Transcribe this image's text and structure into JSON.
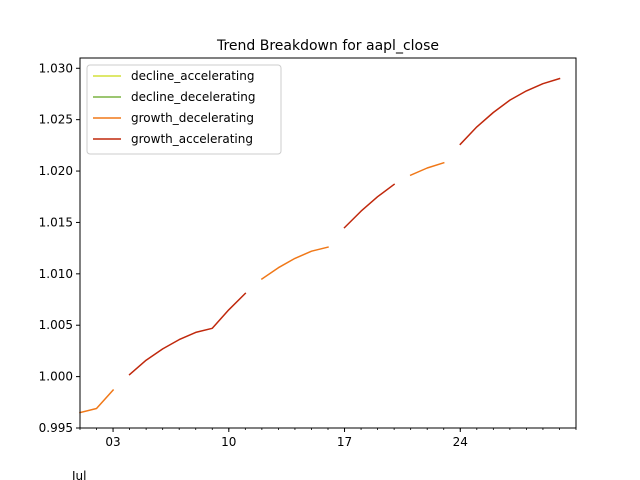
{
  "chart_data": {
    "type": "line",
    "title": "Trend Breakdown for aapl_close",
    "xlabel": "",
    "ylabel": "",
    "x_start": "2023-07-01",
    "x_end": "2023-07-31",
    "xlim": [
      "2023-07-01",
      "2023-07-31"
    ],
    "ylim": [
      0.995,
      1.031
    ],
    "x_ticks": [
      {
        "date": "2023-07-03",
        "label": "03"
      },
      {
        "date": "2023-07-10",
        "label": "10"
      },
      {
        "date": "2023-07-17",
        "label": "17"
      },
      {
        "date": "2023-07-24",
        "label": "24"
      }
    ],
    "x_month_label": "Jul",
    "y_ticks": [
      {
        "value": 0.995,
        "label": "0.995"
      },
      {
        "value": 1.0,
        "label": "1.000"
      },
      {
        "value": 1.005,
        "label": "1.005"
      },
      {
        "value": 1.01,
        "label": "1.010"
      },
      {
        "value": 1.015,
        "label": "1.015"
      },
      {
        "value": 1.02,
        "label": "1.020"
      },
      {
        "value": 1.025,
        "label": "1.025"
      },
      {
        "value": 1.03,
        "label": "1.030"
      }
    ],
    "legend_position": "top-left",
    "grid": false,
    "series": [
      {
        "name": "decline_accelerating",
        "color": "#d4e03a",
        "segments": []
      },
      {
        "name": "decline_decelerating",
        "color": "#7cb342",
        "segments": []
      },
      {
        "name": "growth_decelerating",
        "color": "#f07818",
        "segments": [
          [
            [
              "2023-07-01",
              0.9965
            ],
            [
              "2023-07-02",
              0.9969
            ],
            [
              "2023-07-03",
              0.9987
            ]
          ],
          [
            [
              "2023-07-12",
              1.0095
            ],
            [
              "2023-07-13",
              1.0106
            ],
            [
              "2023-07-14",
              1.0115
            ],
            [
              "2023-07-15",
              1.0122
            ],
            [
              "2023-07-16",
              1.0126
            ]
          ],
          [
            [
              "2023-07-21",
              1.0196
            ],
            [
              "2023-07-22",
              1.0203
            ],
            [
              "2023-07-23",
              1.0208
            ]
          ]
        ]
      },
      {
        "name": "growth_accelerating",
        "color": "#c0280c",
        "segments": [
          [
            [
              "2023-07-04",
              1.0002
            ],
            [
              "2023-07-05",
              1.0016
            ],
            [
              "2023-07-06",
              1.0027
            ],
            [
              "2023-07-07",
              1.0036
            ],
            [
              "2023-07-08",
              1.0043
            ],
            [
              "2023-07-09",
              1.0047
            ],
            [
              "2023-07-10",
              1.0065
            ],
            [
              "2023-07-11",
              1.0081
            ]
          ],
          [
            [
              "2023-07-17",
              1.0145
            ],
            [
              "2023-07-18",
              1.0161
            ],
            [
              "2023-07-19",
              1.0175
            ],
            [
              "2023-07-20",
              1.0187
            ]
          ],
          [
            [
              "2023-07-24",
              1.0226
            ],
            [
              "2023-07-25",
              1.0243
            ],
            [
              "2023-07-26",
              1.0257
            ],
            [
              "2023-07-27",
              1.0269
            ],
            [
              "2023-07-28",
              1.0278
            ],
            [
              "2023-07-29",
              1.0285
            ],
            [
              "2023-07-30",
              1.029
            ]
          ]
        ]
      }
    ]
  }
}
